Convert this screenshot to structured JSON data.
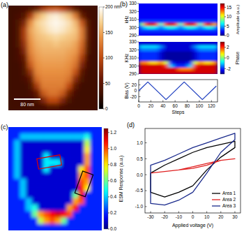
{
  "chart_data": [
    {
      "type": "heatmap",
      "title": "(a)",
      "color": "afmhot",
      "tick_labels": false,
      "annotations": [
        "80 nm"
      ],
      "color_range": [
        0,
        200
      ],
      "color_ticks": [
        0,
        50,
        100,
        150,
        {
          "value": 200,
          "label": "200 nm"
        }
      ],
      "cells": [
        [
          30,
          30,
          35,
          40,
          60,
          90,
          110,
          115,
          100,
          80,
          50,
          35,
          30,
          30
        ],
        [
          30,
          35,
          45,
          90,
          150,
          170,
          185,
          190,
          180,
          165,
          130,
          60,
          35,
          30
        ],
        [
          30,
          40,
          70,
          140,
          170,
          180,
          190,
          195,
          190,
          180,
          160,
          110,
          45,
          30
        ],
        [
          30,
          40,
          90,
          150,
          165,
          175,
          185,
          190,
          185,
          175,
          165,
          130,
          50,
          30
        ],
        [
          30,
          40,
          90,
          145,
          160,
          165,
          170,
          175,
          170,
          165,
          160,
          130,
          50,
          30
        ],
        [
          30,
          40,
          80,
          140,
          155,
          160,
          160,
          165,
          160,
          158,
          150,
          120,
          45,
          30
        ],
        [
          30,
          35,
          70,
          135,
          150,
          155,
          155,
          155,
          155,
          150,
          145,
          110,
          40,
          30
        ],
        [
          30,
          35,
          55,
          125,
          145,
          150,
          150,
          150,
          150,
          145,
          135,
          90,
          35,
          30
        ],
        [
          30,
          30,
          45,
          110,
          140,
          145,
          145,
          145,
          145,
          140,
          125,
          70,
          35,
          30
        ],
        [
          30,
          30,
          40,
          80,
          135,
          140,
          140,
          140,
          140,
          135,
          105,
          50,
          30,
          30
        ],
        [
          30,
          30,
          35,
          55,
          120,
          135,
          135,
          135,
          135,
          125,
          75,
          40,
          30,
          30
        ],
        [
          30,
          30,
          30,
          40,
          90,
          130,
          130,
          130,
          130,
          100,
          50,
          30,
          30,
          30
        ],
        [
          30,
          30,
          30,
          35,
          55,
          110,
          125,
          125,
          110,
          65,
          35,
          30,
          30,
          30
        ],
        [
          30,
          30,
          30,
          30,
          40,
          70,
          100,
          100,
          70,
          40,
          30,
          30,
          30,
          30
        ],
        [
          30,
          30,
          30,
          30,
          30,
          35,
          45,
          45,
          35,
          30,
          30,
          30,
          30,
          30
        ]
      ]
    },
    {
      "type": "heatmap",
      "title": "(b)",
      "color": "jet",
      "tick_labels": "y",
      "xlim": [
        0,
        128
      ],
      "ylim": [
        290,
        330
      ],
      "yticks": [
        290,
        300,
        310,
        320,
        330
      ],
      "y_label": "kHz",
      "color_range": [
        0,
        17
      ],
      "color_ticks": [
        0,
        5,
        10,
        15
      ],
      "color_label": "Amplitude (a.u.)",
      "cells": [
        [
          2,
          2,
          2,
          2,
          2,
          2,
          2,
          2,
          2,
          2,
          2,
          2,
          2,
          2,
          2,
          2
        ],
        [
          2,
          2,
          2,
          2,
          2,
          2,
          2,
          2,
          2,
          2,
          2,
          2,
          2,
          2,
          2,
          2
        ],
        [
          2,
          2,
          2,
          2,
          2,
          2,
          2,
          2,
          2,
          2,
          2,
          2,
          2,
          2,
          2,
          2
        ],
        [
          2,
          2,
          2,
          2,
          2,
          2,
          2,
          2,
          2,
          2,
          2,
          2,
          2,
          2,
          2,
          2
        ],
        [
          2,
          2,
          2,
          2,
          2,
          2,
          2,
          2,
          2,
          2,
          2,
          2,
          2,
          2,
          2,
          2
        ],
        [
          3,
          3,
          3,
          3,
          3,
          3,
          3,
          3,
          3,
          3,
          3,
          3,
          3,
          3,
          3,
          3
        ],
        [
          8,
          14,
          16,
          14,
          7,
          14,
          16,
          14,
          7,
          14,
          16,
          14,
          7,
          14,
          16,
          12
        ],
        [
          4,
          6,
          7,
          6,
          4,
          6,
          7,
          6,
          4,
          6,
          7,
          6,
          4,
          6,
          7,
          5
        ],
        [
          3,
          3,
          3,
          3,
          3,
          3,
          3,
          3,
          3,
          3,
          3,
          3,
          3,
          3,
          3,
          3
        ],
        [
          2,
          2,
          2,
          2,
          2,
          2,
          2,
          2,
          2,
          2,
          2,
          2,
          2,
          2,
          2,
          2
        ]
      ]
    },
    {
      "type": "heatmap",
      "color": "jet",
      "tick_labels": "y",
      "xlim": [
        0,
        128
      ],
      "ylim": [
        290,
        330
      ],
      "yticks": [
        290,
        300,
        310,
        320,
        330
      ],
      "y_label": "KHz",
      "color_range": [
        -3,
        3
      ],
      "color_ticks": [
        -2,
        0,
        2
      ],
      "color_label": "Phase",
      "cells": [
        [
          -2.5,
          -2.5,
          -2.5,
          -2.5,
          -2.5,
          -2.5,
          -2.5,
          -2.5,
          -2.5,
          -2.5,
          -2.5,
          -2.5,
          -2.5,
          -2.5,
          -2.5,
          -2.5
        ],
        [
          -1,
          -1,
          -1,
          -1,
          -1.5,
          -2.5,
          -2.5,
          -2.5,
          -2.5,
          -2.5,
          -2.5,
          -1.5,
          -1,
          -1,
          -1,
          -1
        ],
        [
          -1.5,
          -1.5,
          -1.5,
          -1.5,
          -2,
          -2.5,
          -2.5,
          -2.5,
          -2.5,
          -2.5,
          -2.5,
          -2,
          -1.5,
          -1.5,
          -1.5,
          -1.5
        ],
        [
          -2,
          -2,
          -2,
          -2,
          -2.5,
          -2.8,
          -2.8,
          -2.8,
          -2.8,
          -2.8,
          -2.8,
          -2.5,
          -2,
          -2,
          -2,
          -2
        ],
        [
          -2,
          -2,
          -2,
          -2,
          -2.5,
          -2.8,
          -2.8,
          -2.8,
          -2.8,
          -2.8,
          -2.8,
          -2.5,
          -2,
          -2,
          -2,
          -2
        ],
        [
          -2,
          -2,
          -2,
          -2,
          -2.5,
          -2.8,
          -2.8,
          -2.8,
          -2.8,
          -2.8,
          -2.8,
          -2.5,
          -2,
          -2,
          -2,
          -2
        ],
        [
          1.5,
          1.5,
          1,
          1,
          1.5,
          0.5,
          -2,
          -2.5,
          -2.5,
          -2.5,
          -2,
          0.5,
          1.5,
          1,
          1,
          1.5
        ],
        [
          2.5,
          2.5,
          2.5,
          2.5,
          2.5,
          2,
          -1,
          -2,
          -2,
          -2,
          -1,
          2,
          2.5,
          2.5,
          2.5,
          2.5
        ],
        [
          2.5,
          2.5,
          2.5,
          2.5,
          2.5,
          2.5,
          2.5,
          2.5,
          1.5,
          1.5,
          1.5,
          2.5,
          2.5,
          2.5,
          2.5,
          2.5
        ],
        [
          2.5,
          2.5,
          2.5,
          2.5,
          2.5,
          2.5,
          2.5,
          2.5,
          2.5,
          2.5,
          2.5,
          2.5,
          2.5,
          2.5,
          2.5,
          2.5
        ]
      ]
    },
    {
      "type": "line",
      "color": "#2040c0",
      "x": [
        0,
        15,
        45,
        75,
        105,
        128
      ],
      "values": [
        0,
        30,
        -30,
        30,
        -30,
        16
      ],
      "xlim": [
        0,
        130
      ],
      "ylim": [
        -38,
        38
      ],
      "xticks": [
        0,
        20,
        40,
        60,
        80,
        100,
        120
      ],
      "yticks": [
        -20,
        0,
        20
      ],
      "x_label": "Steps",
      "y_label": "Bias (V)"
    },
    {
      "type": "heatmap",
      "title": "(c)",
      "color": "jet",
      "tick_labels": false,
      "color_range": [
        0,
        1.25
      ],
      "color_ticks": [
        {
          "value": 0,
          "label": "0.0"
        },
        0.2,
        0.4,
        0.6,
        0.8,
        {
          "value": 1,
          "label": "1.0"
        },
        1.2
      ],
      "color_label": "ESM Response (a.u.)",
      "cells": [
        [
          0.2,
          0.2,
          0.2,
          0.2,
          0.2,
          0.2,
          0.2,
          0.2,
          0.2,
          0.2,
          0.2,
          0.2,
          0.2,
          0.2,
          0.2,
          0.2
        ],
        [
          0.2,
          0.2,
          0.4,
          0.4,
          0.4,
          0.4,
          0.4,
          0.4,
          0.4,
          0.4,
          0.4,
          0.4,
          0.4,
          0.5,
          0.2,
          0.2
        ],
        [
          0.2,
          0.4,
          0.1,
          0.1,
          0.1,
          0.1,
          0.1,
          0.1,
          0.1,
          0.1,
          0.1,
          0.1,
          0.1,
          0.7,
          0.2,
          0.2
        ],
        [
          0.2,
          0.4,
          0.1,
          0.1,
          0.1,
          0.1,
          0.1,
          0.1,
          0.1,
          0.1,
          0.1,
          0.1,
          0.1,
          0.8,
          0.2,
          0.2
        ],
        [
          0.2,
          0.4,
          0.1,
          0.1,
          0.1,
          0.1,
          0.45,
          0.1,
          0.1,
          0.1,
          0.1,
          0.1,
          0.1,
          0.9,
          0.2,
          0.2
        ],
        [
          0.2,
          0.4,
          0.1,
          0.1,
          0.1,
          0.1,
          0.45,
          0.45,
          0.45,
          0.1,
          0.1,
          0.1,
          0.1,
          0.9,
          0.2,
          0.2
        ],
        [
          0.2,
          0.4,
          0.1,
          0.1,
          0.1,
          0.1,
          0.45,
          0.1,
          0.1,
          0.1,
          0.1,
          0.1,
          0.8,
          1.0,
          0.2,
          0.2
        ],
        [
          0.2,
          0.4,
          0.1,
          0.1,
          0.1,
          0.1,
          0.1,
          0.1,
          0.1,
          0.1,
          0.1,
          0.1,
          0.9,
          1.0,
          0.2,
          0.2
        ],
        [
          0.2,
          0.2,
          0.4,
          0.1,
          0.1,
          0.1,
          0.1,
          0.1,
          0.1,
          0.1,
          0.1,
          0.1,
          1.0,
          0.9,
          0.2,
          0.2
        ],
        [
          0.2,
          0.2,
          0.4,
          0.1,
          0.1,
          0.1,
          0.1,
          0.1,
          0.1,
          0.1,
          0.1,
          0.1,
          1.1,
          0.8,
          0.2,
          0.2
        ],
        [
          0.2,
          0.2,
          0.4,
          0.1,
          0.1,
          0.1,
          0.1,
          0.1,
          0.1,
          0.1,
          0.1,
          0.6,
          1.1,
          0.2,
          0.2,
          0.2
        ],
        [
          0.2,
          0.2,
          0.2,
          0.4,
          0.1,
          0.1,
          0.1,
          0.1,
          0.1,
          0.1,
          0.1,
          0.9,
          1.0,
          0.2,
          0.2,
          0.2
        ],
        [
          0.2,
          0.2,
          0.2,
          0.4,
          0.5,
          0.1,
          0.1,
          0.1,
          0.1,
          0.1,
          0.9,
          1.1,
          0.2,
          0.2,
          0.2,
          0.2
        ],
        [
          0.2,
          0.2,
          0.2,
          0.2,
          0.6,
          0.9,
          1.0,
          1.1,
          1.15,
          1.1,
          1.0,
          0.2,
          0.2,
          0.2,
          0.2,
          0.2
        ],
        [
          0.2,
          0.2,
          0.2,
          0.2,
          0.2,
          0.7,
          0.9,
          1.0,
          0.9,
          0.6,
          0.2,
          0.2,
          0.2,
          0.2,
          0.2,
          0.2
        ],
        [
          0.2,
          0.2,
          0.2,
          0.2,
          0.2,
          0.2,
          0.2,
          0.2,
          0.2,
          0.2,
          0.2,
          0.2,
          0.2,
          0.2,
          0.2,
          0.2
        ]
      ]
    },
    {
      "type": "line",
      "title": "(d)",
      "legend": "lower right",
      "xlim": [
        -34,
        34
      ],
      "ylim": [
        -1.2,
        1.45
      ],
      "xticks": [
        -30,
        -20,
        -10,
        0,
        10,
        20,
        30
      ],
      "yticks": [
        {
          "value": -1,
          "label": "-1.0"
        },
        -0.5,
        {
          "value": 0,
          "label": "0.0"
        },
        0.5,
        {
          "value": 1,
          "label": "1.0"
        }
      ],
      "x_label": "Applied voltage (V)",
      "series": [
        {
          "name": "Area 1",
          "color": "#000000",
          "x": [
            0,
            10,
            20,
            30,
            30,
            20,
            10,
            0,
            -10,
            -20,
            -30,
            -30,
            -20,
            -10,
            0
          ],
          "values": [
            -0.35,
            0.15,
            0.55,
            0.85,
            1.05,
            0.95,
            0.85,
            0.7,
            0.5,
            0.3,
            0.05,
            -0.55,
            -0.7,
            -0.55,
            -0.35
          ]
        },
        {
          "name": "Area 2",
          "color": "#e02020",
          "x": [
            -30,
            -20,
            -10,
            0,
            10,
            20,
            30,
            20,
            10,
            0,
            -10,
            -20,
            -30
          ],
          "values": [
            0.05,
            0.1,
            0.15,
            0.2,
            0.3,
            0.45,
            0.5,
            0.45,
            0.35,
            0.25,
            0.15,
            0.1,
            0.05
          ]
        },
        {
          "name": "Area 3",
          "color": "#1a2a8c",
          "x": [
            0,
            10,
            20,
            30,
            30,
            20,
            10,
            0,
            -10,
            -20,
            -30,
            -30,
            -20,
            -10,
            0
          ],
          "values": [
            -0.55,
            0.05,
            0.7,
            1.1,
            1.3,
            1.15,
            1.0,
            0.85,
            0.65,
            0.45,
            0.3,
            -0.9,
            -0.95,
            -0.8,
            -0.55
          ]
        }
      ]
    }
  ]
}
